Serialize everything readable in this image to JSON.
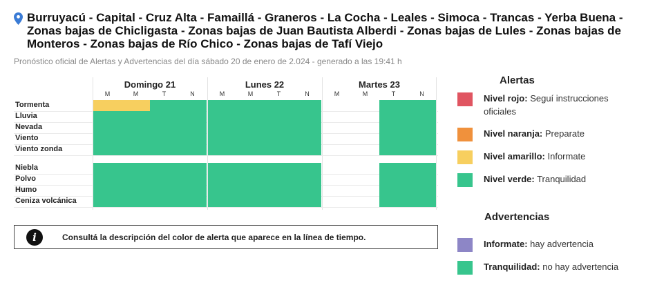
{
  "header": {
    "pin_icon": "location-pin-icon",
    "pin_color": "#3a7bd5",
    "title": "Burruyacú - Capital - Cruz Alta - Famaillá - Graneros - La Cocha - Leales - Simoca - Trancas - Yerba Buena - Zonas bajas de Chicligasta - Zonas bajas de Juan Bautista Alberdi - Zonas bajas de Lules - Zonas bajas de Monteros - Zonas bajas de Río Chico - Zonas bajas de Tafí Viejo",
    "subtitle": "Pronóstico oficial de Alertas y Advertencias del día sábado 20 de enero de 2.024 - generado a las 19:41 h"
  },
  "timeline": {
    "days": [
      {
        "label": "Domingo 21",
        "slots": [
          "M",
          "M",
          "T",
          "N"
        ]
      },
      {
        "label": "Lunes 22",
        "slots": [
          "M",
          "M",
          "T",
          "N"
        ]
      },
      {
        "label": "Martes 23",
        "slots": [
          "M",
          "M",
          "T",
          "N"
        ]
      }
    ],
    "rows": [
      {
        "label": "Tormenta",
        "group": 1,
        "levels": [
          "amarillo",
          "amarillo",
          "verde",
          "verde",
          "verde",
          "verde",
          "verde",
          "verde",
          null,
          null,
          "verde",
          "verde"
        ]
      },
      {
        "label": "Lluvia",
        "group": 1,
        "levels": [
          "verde",
          "verde",
          "verde",
          "verde",
          "verde",
          "verde",
          "verde",
          "verde",
          null,
          null,
          "verde",
          "verde"
        ]
      },
      {
        "label": "Nevada",
        "group": 1,
        "levels": [
          "verde",
          "verde",
          "verde",
          "verde",
          "verde",
          "verde",
          "verde",
          "verde",
          null,
          null,
          "verde",
          "verde"
        ]
      },
      {
        "label": "Viento",
        "group": 1,
        "levels": [
          "verde",
          "verde",
          "verde",
          "verde",
          "verde",
          "verde",
          "verde",
          "verde",
          null,
          null,
          "verde",
          "verde"
        ]
      },
      {
        "label": "Viento zonda",
        "group": 1,
        "levels": [
          "verde",
          "verde",
          "verde",
          "verde",
          "verde",
          "verde",
          "verde",
          "verde",
          null,
          null,
          "verde",
          "verde"
        ]
      },
      {
        "label": "Niebla",
        "group": 2,
        "levels": [
          "verde",
          "verde",
          "verde",
          "verde",
          "verde",
          "verde",
          "verde",
          "verde",
          null,
          null,
          "verde",
          "verde"
        ]
      },
      {
        "label": "Polvo",
        "group": 2,
        "levels": [
          "verde",
          "verde",
          "verde",
          "verde",
          "verde",
          "verde",
          "verde",
          "verde",
          null,
          null,
          "verde",
          "verde"
        ]
      },
      {
        "label": "Humo",
        "group": 2,
        "levels": [
          "verde",
          "verde",
          "verde",
          "verde",
          "verde",
          "verde",
          "verde",
          "verde",
          null,
          null,
          "verde",
          "verde"
        ]
      },
      {
        "label": "Ceniza volcánica",
        "group": 2,
        "levels": [
          "verde",
          "verde",
          "verde",
          "verde",
          "verde",
          "verde",
          "verde",
          "verde",
          null,
          null,
          "verde",
          "verde"
        ]
      }
    ]
  },
  "colors": {
    "rojo": "#e05561",
    "naranja": "#f0913c",
    "amarillo": "#f7cf5f",
    "verde": "#37c58d",
    "violeta": "#8d86c6"
  },
  "info": {
    "icon": "info-icon",
    "text": "Consultá la descripción del color de alerta que aparece en la línea de tiempo."
  },
  "legend": {
    "alertas_title": "Alertas",
    "alertas": [
      {
        "name": "Nivel rojo:",
        "desc": "Seguí instrucciones oficiales",
        "color": "#e05561"
      },
      {
        "name": "Nivel naranja:",
        "desc": "Preparate",
        "color": "#f0913c"
      },
      {
        "name": "Nivel amarillo:",
        "desc": "Informate",
        "color": "#f7cf5f"
      },
      {
        "name": "Nivel verde:",
        "desc": "Tranquilidad",
        "color": "#37c58d"
      }
    ],
    "advertencias_title": "Advertencias",
    "advertencias": [
      {
        "name": "Informate:",
        "desc": "hay advertencia",
        "color": "#8d86c6"
      },
      {
        "name": "Tranquilidad:",
        "desc": "no hay advertencia",
        "color": "#37c58d"
      }
    ]
  }
}
